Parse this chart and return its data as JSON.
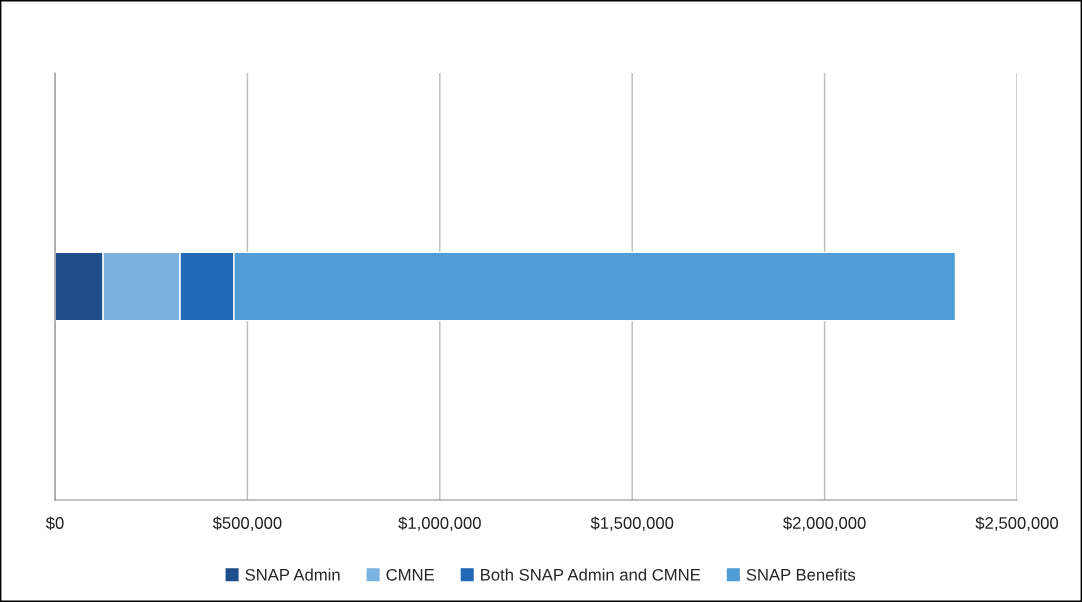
{
  "chart_data": {
    "type": "bar",
    "orientation": "horizontal",
    "stacked": true,
    "categories": [
      null
    ],
    "series": [
      {
        "name": "SNAP Admin",
        "color": "#1f4e8c",
        "values": [
          125000
        ]
      },
      {
        "name": "CMNE",
        "color": "#7ab3e0",
        "values": [
          200000
        ]
      },
      {
        "name": "Both SNAP Admin and CMNE",
        "color": "#2168b6",
        "values": [
          140000
        ]
      },
      {
        "name": "SNAP Benefits",
        "color": "#4f9dd6",
        "values": [
          1875000
        ]
      }
    ],
    "xlim": [
      0,
      2500000
    ],
    "xticks": [
      {
        "value": 0,
        "label": "$0"
      },
      {
        "value": 500000,
        "label": "$500,000"
      },
      {
        "value": 1000000,
        "label": "$1,000,000"
      },
      {
        "value": 1500000,
        "label": "$1,500,000"
      },
      {
        "value": 2000000,
        "label": "$2,000,000"
      },
      {
        "value": 2500000,
        "label": "$2,500,000"
      }
    ],
    "grid": "x",
    "legend": "bottom"
  }
}
